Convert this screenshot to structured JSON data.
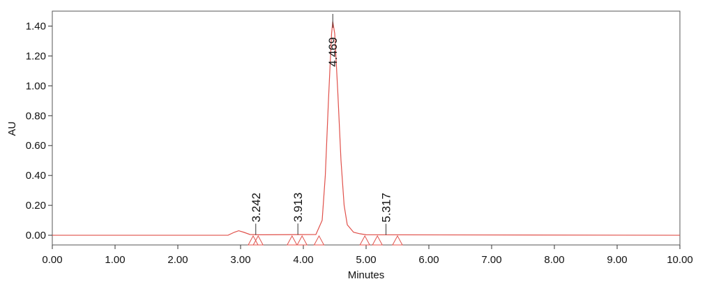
{
  "chart_data": {
    "type": "line",
    "xlabel": "Minutes",
    "ylabel": "AU",
    "xlim": [
      0,
      10
    ],
    "ylim": [
      -0.065,
      1.5
    ],
    "xticks": [
      {
        "value": 0,
        "label": "0.00"
      },
      {
        "value": 1,
        "label": "1.00"
      },
      {
        "value": 2,
        "label": "2.00"
      },
      {
        "value": 3,
        "label": "3.00"
      },
      {
        "value": 4,
        "label": "4.00"
      },
      {
        "value": 5,
        "label": "5.00"
      },
      {
        "value": 6,
        "label": "6.00"
      },
      {
        "value": 7,
        "label": "7.00"
      },
      {
        "value": 8,
        "label": "8.00"
      },
      {
        "value": 9,
        "label": "9.00"
      },
      {
        "value": 10,
        "label": "10.00"
      }
    ],
    "yticks": [
      {
        "value": 0,
        "label": "0.00"
      },
      {
        "value": 0.2,
        "label": "0.20"
      },
      {
        "value": 0.4,
        "label": "0.40"
      },
      {
        "value": 0.6,
        "label": "0.60"
      },
      {
        "value": 0.8,
        "label": "0.80"
      },
      {
        "value": 1.0,
        "label": "1.00"
      },
      {
        "value": 1.2,
        "label": "1.20"
      },
      {
        "value": 1.4,
        "label": "1.40"
      }
    ],
    "series": [
      {
        "color": "#e0504a",
        "x": [
          0,
          2.8,
          2.9,
          2.97,
          3.05,
          3.15,
          3.3,
          4.2,
          4.3,
          4.35,
          4.4,
          4.45,
          4.469,
          4.5,
          4.55,
          4.6,
          4.65,
          4.7,
          4.8,
          4.9,
          5.0,
          10
        ],
        "values": [
          0,
          0,
          0.02,
          0.03,
          0.02,
          0.005,
          0.003,
          0.005,
          0.1,
          0.4,
          0.9,
          1.35,
          1.43,
          1.35,
          0.95,
          0.5,
          0.2,
          0.07,
          0.02,
          0.01,
          0.003,
          0
        ]
      }
    ],
    "peaks": [
      {
        "time": 3.242,
        "height": 0.003
      },
      {
        "time": 3.913,
        "height": 0.004
      },
      {
        "time": 4.469,
        "height": 1.43
      },
      {
        "time": 5.317,
        "height": 0.002
      }
    ],
    "integration_marks": [
      3.2,
      3.28,
      3.82,
      3.98,
      4.25,
      4.98,
      5.18,
      5.5
    ]
  }
}
